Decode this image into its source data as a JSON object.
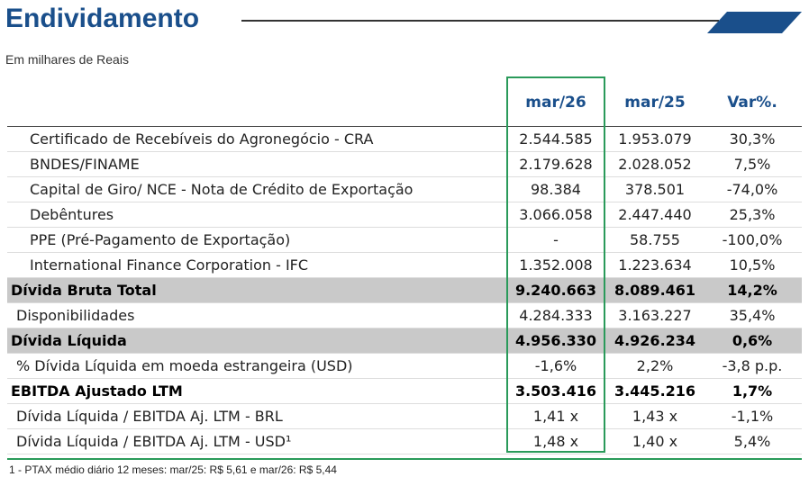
{
  "header": {
    "title": "Endividamento",
    "subtitle": "Em milhares de Reais"
  },
  "table": {
    "columns": [
      "mar/26",
      "mar/25",
      "Var%."
    ],
    "rows": [
      [
        "Certificado de Recebíveis do Agronegócio - CRA",
        "2.544.585",
        "1.953.079",
        "30,3%"
      ],
      [
        "BNDES/FINAME",
        "2.179.628",
        "2.028.052",
        "7,5%"
      ],
      [
        "Capital de Giro/ NCE - Nota de Crédito de Exportação",
        "98.384",
        "378.501",
        "-74,0%"
      ],
      [
        "Debêntures",
        "3.066.058",
        "2.447.440",
        "25,3%"
      ],
      [
        "PPE (Pré-Pagamento de Exportação)",
        "-",
        "58.755",
        "-100,0%"
      ],
      [
        "International Finance Corporation - IFC",
        "1.352.008",
        "1.223.634",
        "10,5%"
      ],
      [
        "Dívida Bruta Total",
        "9.240.663",
        "8.089.461",
        "14,2%"
      ],
      [
        "Disponibilidades",
        "4.284.333",
        "3.163.227",
        "35,4%"
      ],
      [
        "Dívida Líquida",
        "4.956.330",
        "4.926.234",
        "0,6%"
      ],
      [
        "% Dívida Líquida em moeda estrangeira (USD)",
        "-1,6%",
        "2,2%",
        "-3,8 p.p."
      ],
      [
        "EBITDA Ajustado LTM",
        "3.503.416",
        "3.445.216",
        "1,7%"
      ],
      [
        "Dívida Líquida / EBITDA Aj. LTM - BRL",
        "1,41 x",
        "1,43 x",
        "-1,1%"
      ],
      [
        "Dívida Líquida / EBITDA Aj. LTM - USD¹",
        "1,48 x",
        "1,40 x",
        "5,4%"
      ]
    ]
  },
  "footnote": "1 - PTAX médio diário 12 meses: mar/25: R$ 5,61 e mar/26: R$ 5,44"
}
